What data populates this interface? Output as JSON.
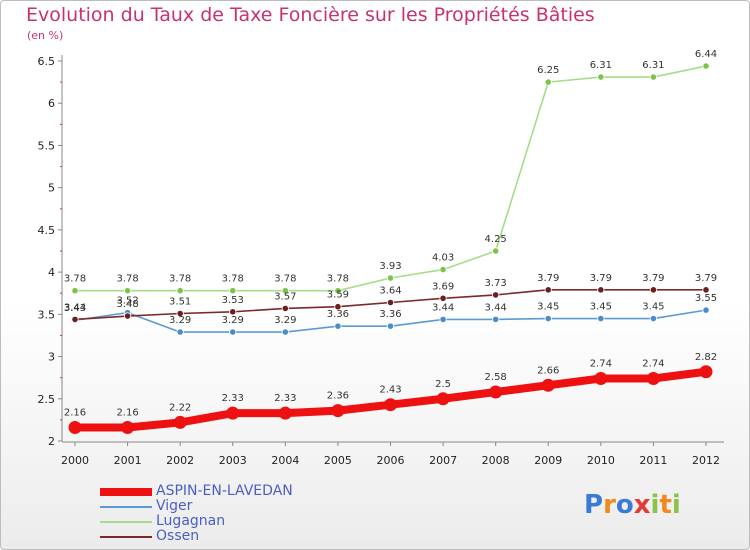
{
  "title": "Evolution du Taux de Taxe Foncière sur les Propriétés Bâties",
  "subtitle": "(en %)",
  "logo": {
    "letters": [
      "P",
      "r",
      "o",
      "x",
      "i",
      "t",
      "i"
    ],
    "colors": [
      "#3a7bd5",
      "#f08a1c",
      "#3a7bd5",
      "#e53935",
      "#8bc34a",
      "#f08a1c",
      "#8bc34a"
    ]
  },
  "chart_data": {
    "type": "line",
    "x": [
      "2000",
      "2001",
      "2002",
      "2003",
      "2004",
      "2005",
      "2006",
      "2007",
      "2008",
      "2009",
      "2010",
      "2011",
      "2012"
    ],
    "ylim": [
      2,
      6.5
    ],
    "yticks": [
      "2",
      "2.5",
      "3",
      "3.5",
      "4",
      "4.5",
      "5",
      "5.5",
      "6",
      "6.5"
    ],
    "grid": false,
    "legend_position": "bottom-left",
    "series": [
      {
        "name": "Lugagnan",
        "color": "#a5dd8a",
        "marker": "#7cc544",
        "width": 1.6,
        "values": [
          3.78,
          3.78,
          3.78,
          3.78,
          3.78,
          3.78,
          3.93,
          4.03,
          4.25,
          6.25,
          6.31,
          6.31,
          6.44
        ],
        "labels": [
          "3.78",
          "3.78",
          "3.78",
          "3.78",
          "3.78",
          "3.78",
          "3.93",
          "4.03",
          "4.25",
          "6.25",
          "6.31",
          "6.31",
          "6.44"
        ]
      },
      {
        "name": "Viger",
        "color": "#5b9bd5",
        "marker": "#4a8cc9",
        "width": 1.6,
        "values": [
          3.43,
          3.52,
          3.29,
          3.29,
          3.29,
          3.36,
          3.36,
          3.44,
          3.44,
          3.45,
          3.45,
          3.45,
          3.55
        ],
        "labels": [
          "3.43",
          "3.52",
          "3.29",
          "3.29",
          "3.29",
          "3.36",
          "3.36",
          "3.44",
          "3.44",
          "3.45",
          "3.45",
          "3.45",
          "3.55"
        ]
      },
      {
        "name": "Ossen",
        "color": "#7a2a2a",
        "marker": "#6b1f1f",
        "width": 1.6,
        "values": [
          3.44,
          3.48,
          3.51,
          3.53,
          3.57,
          3.59,
          3.64,
          3.69,
          3.73,
          3.79,
          3.79,
          3.79,
          3.79
        ],
        "labels": [
          "3.44",
          "3.48",
          "3.51",
          "3.53",
          "3.57",
          "3.59",
          "3.64",
          "3.69",
          "3.73",
          "3.79",
          "3.79",
          "3.79",
          "3.79"
        ]
      },
      {
        "name": "ASPIN-EN-LAVEDAN",
        "color": "#ee1111",
        "marker": "#ee1111",
        "width": 8,
        "values": [
          2.16,
          2.16,
          2.22,
          2.33,
          2.33,
          2.36,
          2.43,
          2.5,
          2.58,
          2.66,
          2.74,
          2.74,
          2.82
        ],
        "labels": [
          "2.16",
          "2.16",
          "2.22",
          "2.33",
          "2.33",
          "2.36",
          "2.43",
          "2.5",
          "2.58",
          "2.66",
          "2.74",
          "2.74",
          "2.82"
        ]
      }
    ],
    "legend_order": [
      "ASPIN-EN-LAVEDAN",
      "Viger",
      "Lugagnan",
      "Ossen"
    ]
  }
}
